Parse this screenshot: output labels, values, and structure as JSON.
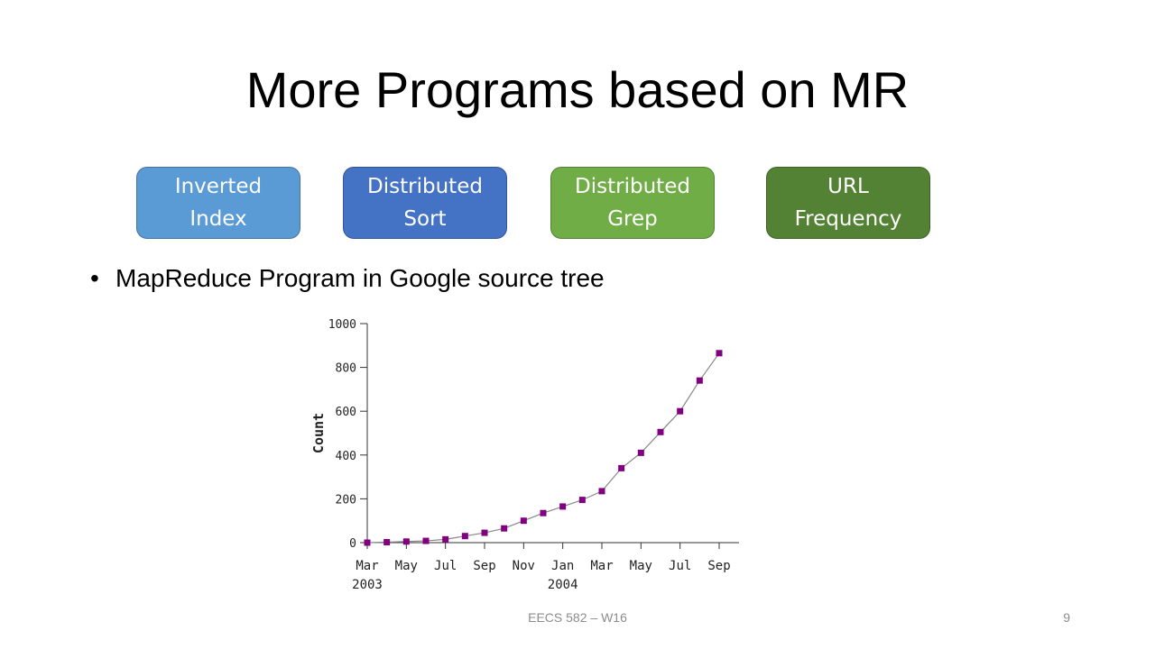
{
  "slide": {
    "title": "More Programs based on MR",
    "bullet": "MapReduce Program in Google source tree",
    "footer": "EECS 582 – W16",
    "page_number": "9"
  },
  "boxes": [
    {
      "line1": "Inverted",
      "line2": "Index",
      "color": "#5b9bd5"
    },
    {
      "line1": "Distributed",
      "line2": "Sort",
      "color": "#4472c4"
    },
    {
      "line1": "Distributed",
      "line2": "Grep",
      "color": "#70ad47"
    },
    {
      "line1": "URL",
      "line2": "Frequency",
      "color": "#548235"
    }
  ],
  "chart_data": {
    "type": "line",
    "ylabel": "Count",
    "ylim": [
      0,
      1000
    ],
    "yticks": [
      "0",
      "200",
      "400",
      "600",
      "800",
      "1000"
    ],
    "xticks": [
      "Mar",
      "May",
      "Jul",
      "Sep",
      "Nov",
      "Jan",
      "Mar",
      "May",
      "Jul",
      "Sep"
    ],
    "year_labels": [
      "2003",
      "2004"
    ],
    "marker_color": "#800080",
    "series": [
      {
        "values": [
          0,
          2,
          5,
          8,
          15,
          30,
          45,
          65,
          100,
          135,
          165,
          195,
          235,
          340,
          410,
          505,
          600,
          740,
          865
        ]
      }
    ]
  }
}
